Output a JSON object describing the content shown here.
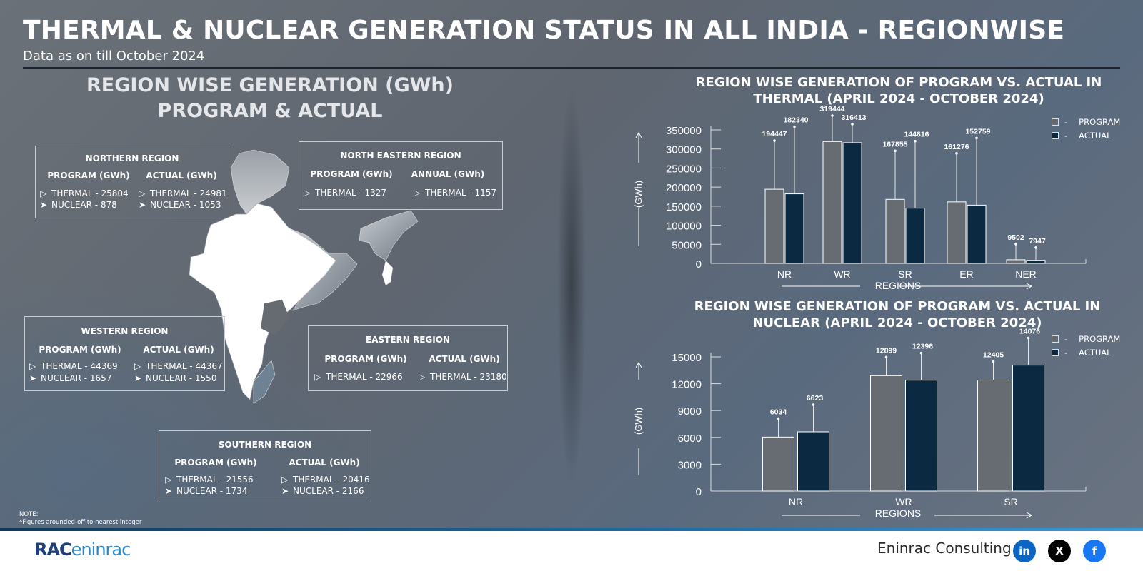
{
  "header": {
    "title": "THERMAL & NUCLEAR GENERATION STATUS IN ALL INDIA - REGIONWISE",
    "subtitle": "Data as on till October 2024"
  },
  "left": {
    "heading_line1": "REGION WISE GENERATION (GWh)",
    "heading_line2": "PROGRAM & ACTUAL",
    "regions": {
      "northern": {
        "title": "NORTHERN REGION",
        "col1": "PROGRAM (GWh)",
        "col2": "ACTUAL (GWh)",
        "program": [
          "THERMAL - 25804",
          "NUCLEAR - 878"
        ],
        "actual": [
          "THERMAL - 24981",
          "NUCLEAR - 1053"
        ]
      },
      "north_eastern": {
        "title": "NORTH EASTERN REGION",
        "col1": "PROGRAM (GWh)",
        "col2": "ANNUAL (GWh)",
        "program": [
          "THERMAL - 1327"
        ],
        "actual": [
          "THERMAL - 1157"
        ]
      },
      "western": {
        "title": "WESTERN REGION",
        "col1": "PROGRAM (GWh)",
        "col2": "ACTUAL (GWh)",
        "program": [
          "THERMAL - 44369",
          "NUCLEAR - 1657"
        ],
        "actual": [
          "THERMAL - 44367",
          "NUCLEAR - 1550"
        ]
      },
      "eastern": {
        "title": "EASTERN REGION",
        "col1": "PROGRAM (GWh)",
        "col2": "ACTUAL (GWh)",
        "program": [
          "THERMAL - 22966"
        ],
        "actual": [
          "THERMAL - 23180"
        ]
      },
      "southern": {
        "title": "SOUTHERN REGION",
        "col1": "PROGRAM (GWh)",
        "col2": "ACTUAL (GWh)",
        "program": [
          "THERMAL - 21556",
          "NUCLEAR - 1734"
        ],
        "actual": [
          "THERMAL - 20416",
          "NUCLEAR - 2166"
        ]
      }
    },
    "note_label": "NOTE:",
    "note_text": "*Figures arounded-off to nearest integer"
  },
  "legend": {
    "program": "PROGRAM",
    "actual": "ACTUAL",
    "dash": "-"
  },
  "colors": {
    "program": "#676c73",
    "actual": "#0b2a42",
    "bar_border": "#ffffff"
  },
  "chart_data": [
    {
      "type": "bar",
      "title_line1": "REGION WISE GENERATION OF PROGRAM VS. ACTUAL IN",
      "title_line2": "THERMAL (APRIL 2024 - OCTOBER 2024)",
      "categories": [
        "NR",
        "WR",
        "SR",
        "ER",
        "NER"
      ],
      "series": [
        {
          "name": "PROGRAM",
          "values": [
            194447,
            319444,
            167855,
            161276,
            9502
          ]
        },
        {
          "name": "ACTUAL",
          "values": [
            182340,
            316413,
            144816,
            152759,
            7947
          ]
        }
      ],
      "ylabel": "(GWh)",
      "xlabel": "REGIONS",
      "ylim": [
        0,
        350000
      ],
      "yticks": [
        "350000",
        "300000",
        "250000",
        "200000",
        "150000",
        "100000",
        "50000",
        "0"
      ],
      "legend": "top-right"
    },
    {
      "type": "bar",
      "title_line1": "REGION WISE GENERATION OF PROGRAM VS. ACTUAL IN",
      "title_line2": "NUCLEAR (APRIL 2024 - OCTOBER 2024)",
      "categories": [
        "NR",
        "WR",
        "SR"
      ],
      "series": [
        {
          "name": "PROGRAM",
          "values": [
            6034,
            12899,
            12405
          ]
        },
        {
          "name": "ACTUAL",
          "values": [
            6623,
            12396,
            14076
          ]
        }
      ],
      "ylabel": "(GWh)",
      "xlabel": "REGIONS",
      "ylim": [
        0,
        15000
      ],
      "yticks": [
        "15000",
        "12000",
        "9000",
        "6000",
        "3000",
        "0"
      ],
      "legend": "top-right"
    }
  ],
  "footer": {
    "logo_main": "RAC",
    "logo_light": "eninrac",
    "company": "Eninrac Consulting",
    "social": [
      {
        "name": "linkedin",
        "glyph": "in",
        "color": "#0a66c2"
      },
      {
        "name": "x",
        "glyph": "X",
        "color": "#000000"
      },
      {
        "name": "facebook",
        "glyph": "f",
        "color": "#1877f2"
      }
    ]
  }
}
